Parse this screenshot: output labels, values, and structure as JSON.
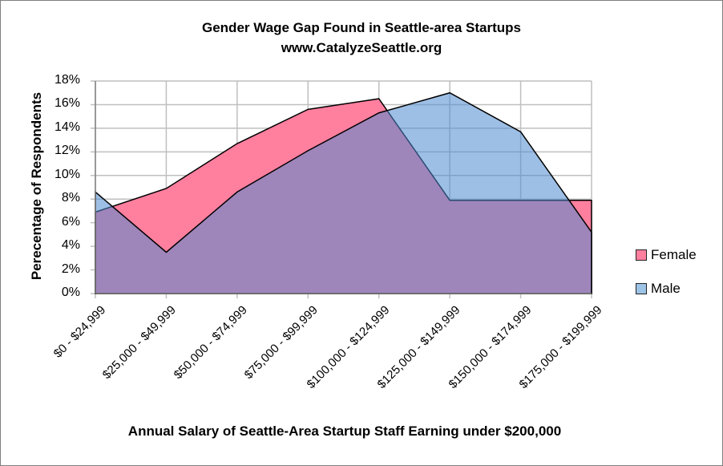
{
  "chart_data": {
    "type": "area",
    "title": "Gender Wage Gap Found in Seattle-area Startups",
    "subtitle": "www.CatalyzeSeattle.org",
    "xlabel": "Annual Salary of Seattle-Area Startup Staff Earning under $200,000",
    "ylabel": "Perecentage of Respondents",
    "categories": [
      "$0 - $24,999",
      "$25,000 - $49,999",
      "$50,000 - $74,999",
      "$75,000 - $99,999",
      "$100,000 - $124,999",
      "$125,000 - $149,999",
      "$150,000 - $174,999",
      "$175,000 - $199,999"
    ],
    "series": [
      {
        "name": "Female",
        "color": "#FF7F9F",
        "values": [
          6.9,
          8.9,
          12.7,
          15.6,
          16.5,
          7.9,
          7.9,
          7.9
        ]
      },
      {
        "name": "Male",
        "color": "#9DC3E6",
        "values": [
          8.6,
          3.5,
          8.6,
          12.1,
          15.3,
          17.0,
          13.7,
          5.2
        ]
      }
    ],
    "ylim": [
      0,
      18
    ],
    "yticks": [
      "0%",
      "2%",
      "4%",
      "6%",
      "8%",
      "10%",
      "12%",
      "14%",
      "16%",
      "18%"
    ],
    "grid": true,
    "legend_position": "right",
    "overlap_color": "#9F8CC1"
  }
}
